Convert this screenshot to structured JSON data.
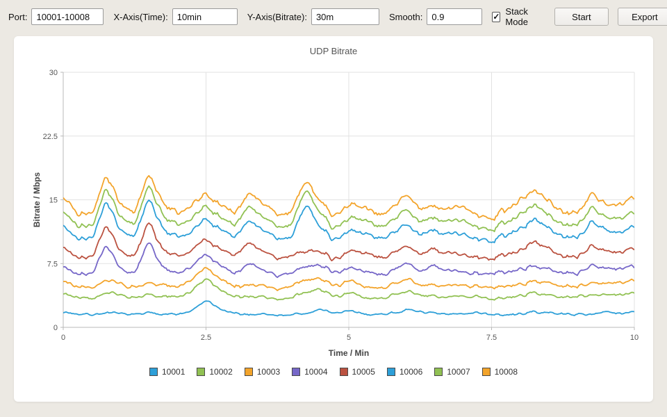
{
  "toolbar": {
    "port": {
      "label": "Port:",
      "value": "10001-10008"
    },
    "x_axis": {
      "label": "X-Axis(Time):",
      "value": "10min"
    },
    "y_axis": {
      "label": "Y-Axis(Bitrate):",
      "value": "30m"
    },
    "smooth": {
      "label": "Smooth:",
      "value": "0.9"
    },
    "stack_mode": {
      "label": "Stack Mode",
      "checked": true,
      "check_glyph": "✓"
    },
    "start_label": "Start",
    "export_label": "Export"
  },
  "chart_data": {
    "type": "line",
    "stacked": true,
    "title": "UDP Bitrate",
    "xlabel": "Time / Min",
    "ylabel": "Bitrate / Mbps",
    "xlim": [
      0,
      10
    ],
    "ylim": [
      0,
      30
    ],
    "x_ticks": [
      0,
      2.5,
      5,
      7.5,
      10
    ],
    "y_ticks": [
      0,
      7.5,
      15,
      22.5,
      30
    ],
    "grid": true,
    "legend_position": "bottom",
    "x_anchor_step": 0.25,
    "grid_color": "#e2e2e2",
    "axis_color": "#b9b9b9",
    "tick_text_color": "#555555",
    "axis_title_color": "#444444",
    "noise": {
      "seed": 7,
      "amplitude": 0.17,
      "upsample": 10
    },
    "series": [
      {
        "name": "10001",
        "color": "#2d9fd8",
        "values": [
          1.8,
          1.6,
          1.5,
          1.7,
          1.6,
          1.5,
          1.7,
          1.6,
          1.5,
          1.9,
          3.2,
          2.1,
          1.6,
          1.5,
          1.6,
          1.4,
          1.5,
          1.6,
          2.1,
          1.7,
          1.9,
          1.6,
          1.5,
          1.7,
          2.0,
          1.9,
          1.6,
          1.5,
          1.6,
          1.8,
          1.5,
          1.4,
          1.6,
          1.8,
          1.7,
          1.6,
          1.5,
          1.6,
          1.8,
          1.6,
          1.9
        ]
      },
      {
        "name": "10002",
        "color": "#91c153",
        "values": [
          2.2,
          2.0,
          1.9,
          2.4,
          2.1,
          2.0,
          2.1,
          2.1,
          2.0,
          2.3,
          2.6,
          2.3,
          2.0,
          2.1,
          2.1,
          1.9,
          2.0,
          2.6,
          2.3,
          2.0,
          2.1,
          2.0,
          1.9,
          2.1,
          2.1,
          2.0,
          1.9,
          2.0,
          2.1,
          1.9,
          1.8,
          2.0,
          2.2,
          2.2,
          2.1,
          2.0,
          2.1,
          2.3,
          2.0,
          2.2,
          2.3
        ]
      },
      {
        "name": "10003",
        "color": "#f3a42b",
        "values": [
          1.5,
          1.3,
          1.2,
          1.4,
          1.3,
          1.2,
          1.4,
          1.3,
          1.2,
          1.3,
          1.3,
          1.3,
          1.2,
          1.4,
          1.3,
          1.2,
          1.3,
          1.5,
          1.3,
          1.2,
          1.4,
          1.3,
          1.2,
          1.3,
          1.4,
          1.2,
          1.3,
          1.4,
          1.3,
          1.2,
          1.3,
          1.4,
          1.3,
          1.4,
          1.4,
          1.3,
          1.2,
          1.4,
          1.3,
          1.4,
          1.5
        ]
      },
      {
        "name": "10004",
        "color": "#7667c8",
        "values": [
          1.7,
          1.5,
          1.6,
          4.2,
          1.8,
          1.6,
          5.0,
          1.9,
          1.6,
          1.5,
          1.5,
          1.6,
          1.5,
          2.6,
          1.8,
          1.6,
          1.5,
          1.6,
          1.6,
          1.5,
          1.6,
          1.8,
          1.6,
          1.7,
          1.9,
          1.6,
          2.3,
          1.7,
          1.6,
          1.5,
          1.7,
          1.6,
          1.8,
          1.7,
          1.7,
          1.6,
          1.5,
          2.1,
          1.8,
          1.6,
          1.7
        ]
      },
      {
        "name": "10005",
        "color": "#bb5240",
        "values": [
          2.2,
          2.0,
          1.9,
          2.3,
          2.1,
          2.0,
          2.3,
          2.1,
          2.0,
          1.9,
          1.8,
          2.0,
          2.1,
          2.5,
          2.2,
          2.0,
          2.1,
          1.8,
          1.6,
          1.5,
          2.0,
          2.2,
          2.0,
          2.1,
          2.1,
          2.0,
          1.9,
          2.1,
          2.0,
          1.9,
          1.8,
          2.0,
          2.2,
          2.9,
          2.4,
          2.0,
          1.9,
          2.3,
          2.0,
          1.9,
          2.1
        ]
      },
      {
        "name": "10006",
        "color": "#2d9fd8",
        "values": [
          2.5,
          2.3,
          2.2,
          2.9,
          2.4,
          2.3,
          2.7,
          2.4,
          2.3,
          2.2,
          2.4,
          2.3,
          2.2,
          2.6,
          2.5,
          2.3,
          2.2,
          5.6,
          2.8,
          2.3,
          2.4,
          2.3,
          2.2,
          2.4,
          2.5,
          2.3,
          2.2,
          2.3,
          2.4,
          2.2,
          2.1,
          2.3,
          2.5,
          2.6,
          2.4,
          2.3,
          2.2,
          2.8,
          2.5,
          2.3,
          2.6
        ]
      },
      {
        "name": "10007",
        "color": "#91c153",
        "values": [
          1.7,
          1.5,
          1.4,
          1.6,
          1.5,
          1.4,
          1.6,
          1.5,
          1.4,
          1.5,
          1.5,
          1.5,
          1.4,
          1.7,
          1.5,
          1.4,
          1.5,
          1.8,
          1.6,
          1.4,
          1.5,
          1.6,
          1.4,
          1.5,
          1.7,
          1.5,
          1.4,
          1.5,
          1.6,
          1.4,
          1.3,
          1.5,
          1.7,
          1.7,
          1.5,
          1.4,
          1.5,
          1.7,
          1.5,
          1.6,
          1.7
        ]
      },
      {
        "name": "10008",
        "color": "#f3a42b",
        "values": [
          1.7,
          1.5,
          1.4,
          1.5,
          1.5,
          1.4,
          1.3,
          1.5,
          1.4,
          1.5,
          1.5,
          1.5,
          1.4,
          1.5,
          1.6,
          1.4,
          1.5,
          1.1,
          1.5,
          1.4,
          1.6,
          1.5,
          1.4,
          1.5,
          1.7,
          1.5,
          1.4,
          1.5,
          1.6,
          1.4,
          1.3,
          1.5,
          1.7,
          1.7,
          1.6,
          1.5,
          1.4,
          1.6,
          1.5,
          1.6,
          1.8
        ]
      }
    ]
  }
}
